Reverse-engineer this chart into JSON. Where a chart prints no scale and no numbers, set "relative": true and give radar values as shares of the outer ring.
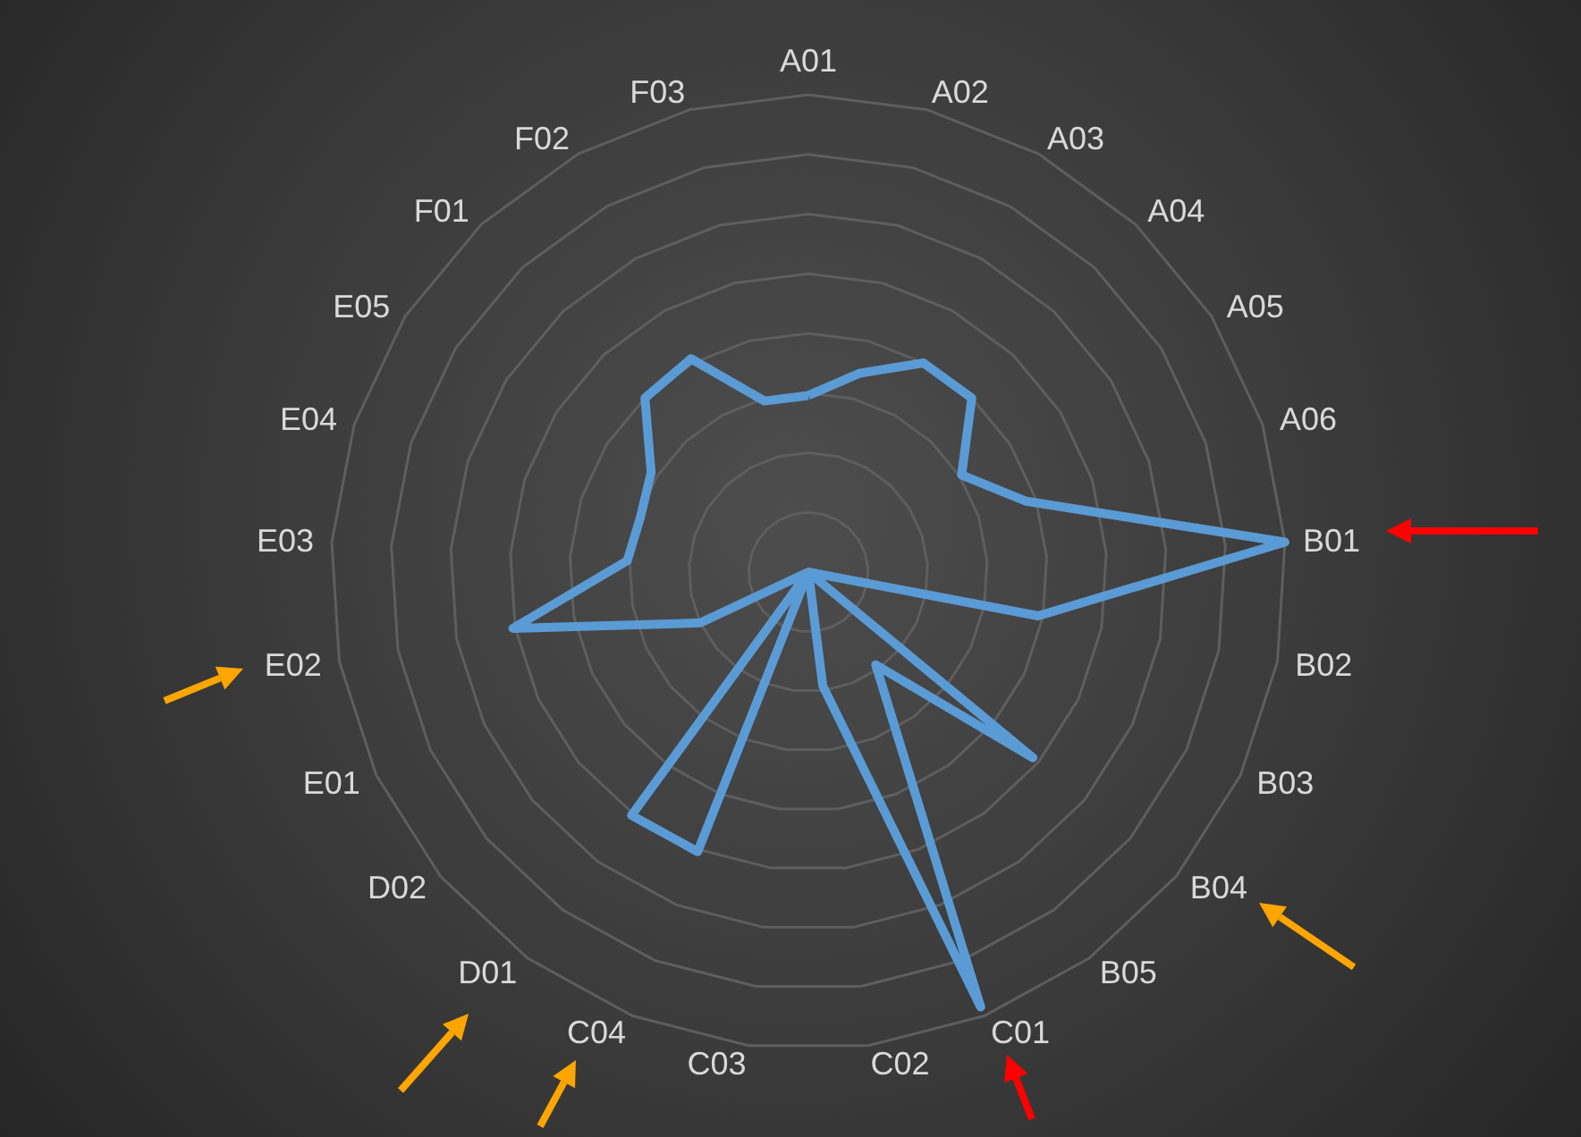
{
  "chart_data": {
    "type": "radar",
    "relative": true,
    "grid": true,
    "marker": "none",
    "categories": [
      "A01",
      "A02",
      "A03",
      "A04",
      "A05",
      "A06",
      "B01",
      "B02",
      "B03",
      "B04",
      "B05",
      "C01",
      "C02",
      "C03",
      "C04",
      "D01",
      "D02",
      "E01",
      "E02",
      "E03",
      "E04",
      "E05",
      "F01",
      "F02",
      "F03"
    ],
    "series": [
      {
        "color": "#5b9bd5",
        "values": [
          0.37,
          0.43,
          0.5,
          0.5,
          0.38,
          0.48,
          1,
          0.49,
          0,
          0.61,
          0.24,
          0.98,
          0.24,
          0,
          0.63,
          0.63,
          0,
          0.25,
          0.63,
          0.38,
          0.37,
          0.39,
          0.5,
          0.51,
          0.37
        ]
      }
    ]
  }
}
